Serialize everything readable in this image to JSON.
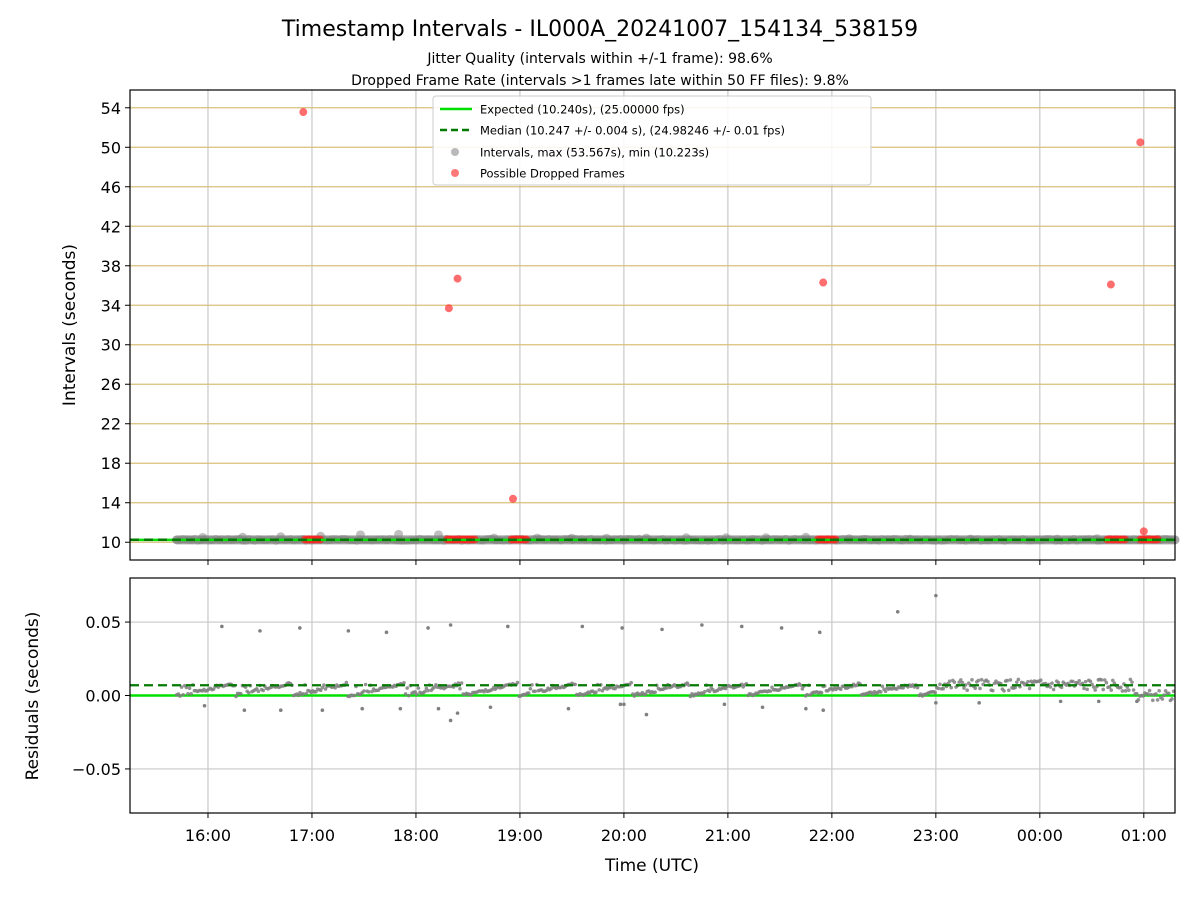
{
  "title": "Timestamp Intervals - IL000A_20241007_154134_538159",
  "subtitles": [
    "Jitter Quality (intervals within +/-1 frame): 98.6%",
    "Dropped Frame Rate (intervals >1 frames late within 50 FF files): 9.8%"
  ],
  "colors": {
    "expected": "#00e000",
    "median": "#007a00",
    "intervals": "#808080",
    "dropped": "#ff2020",
    "hgrid_top": "#d9bf7a",
    "grid": "#c8c8c8"
  },
  "chart_data": [
    {
      "type": "scatter",
      "panel": "intervals",
      "ylabel": "Intervals (seconds)",
      "xlabel": "",
      "xlim": [
        "15:15",
        "01:18"
      ],
      "ylim": [
        8.2,
        55.8
      ],
      "yticks": [
        "10",
        "14",
        "18",
        "22",
        "26",
        "30",
        "34",
        "38",
        "42",
        "46",
        "50",
        "54"
      ],
      "ytick_values": [
        10,
        14,
        18,
        22,
        26,
        30,
        34,
        38,
        42,
        46,
        50,
        54
      ],
      "grid": true,
      "legend_position": "upper-center",
      "legend": [
        {
          "label": "Expected (10.240s), (25.00000 fps)",
          "kind": "line-solid"
        },
        {
          "label": "Median (10.247 +/- 0.004 s), (24.98246 +/- 0.01 fps)",
          "kind": "line-dashed"
        },
        {
          "label": "Intervals, max (53.567s), min (10.223s)",
          "kind": "dot-gray"
        },
        {
          "label": "Possible Dropped Frames",
          "kind": "dot-red"
        }
      ],
      "expected": 10.24,
      "median": 10.247,
      "interval_range": {
        "start": "15:42",
        "end": "01:18",
        "baseline": 10.24
      },
      "interval_bumps": [
        {
          "x": "15:57",
          "y": 10.48
        },
        {
          "x": "16:20",
          "y": 10.5
        },
        {
          "x": "16:42",
          "y": 10.55
        },
        {
          "x": "17:05",
          "y": 10.6
        },
        {
          "x": "17:28",
          "y": 10.75
        },
        {
          "x": "17:50",
          "y": 10.8
        },
        {
          "x": "18:13",
          "y": 10.75
        },
        {
          "x": "18:45",
          "y": 10.42
        },
        {
          "x": "19:10",
          "y": 10.42
        },
        {
          "x": "19:30",
          "y": 10.4
        },
        {
          "x": "19:50",
          "y": 10.4
        },
        {
          "x": "20:13",
          "y": 10.42
        },
        {
          "x": "20:36",
          "y": 10.45
        },
        {
          "x": "20:59",
          "y": 10.45
        },
        {
          "x": "21:22",
          "y": 10.45
        },
        {
          "x": "21:45",
          "y": 10.5
        },
        {
          "x": "22:10",
          "y": 10.35
        },
        {
          "x": "22:45",
          "y": 10.32
        },
        {
          "x": "23:20",
          "y": 10.32
        },
        {
          "x": "00:10",
          "y": 10.32
        },
        {
          "x": "00:33",
          "y": 10.35
        }
      ],
      "dropped_outliers": [
        {
          "x": "16:55",
          "y": 53.57
        },
        {
          "x": "18:19",
          "y": 33.7
        },
        {
          "x": "18:24",
          "y": 36.7
        },
        {
          "x": "18:56",
          "y": 14.4
        },
        {
          "x": "21:55",
          "y": 36.3
        },
        {
          "x": "00:41",
          "y": 36.1
        },
        {
          "x": "00:58",
          "y": 50.5
        },
        {
          "x": "01:00",
          "y": 11.1
        }
      ],
      "dropped_clusters": [
        {
          "start": "16:56",
          "end": "17:06",
          "y": 10.28
        },
        {
          "start": "18:18",
          "end": "18:35",
          "y": 10.28
        },
        {
          "start": "18:55",
          "end": "19:05",
          "y": 10.28
        },
        {
          "start": "21:52",
          "end": "22:03",
          "y": 10.28
        },
        {
          "start": "00:39",
          "end": "00:50",
          "y": 10.28
        },
        {
          "start": "00:58",
          "end": "01:09",
          "y": 10.28
        }
      ]
    },
    {
      "type": "scatter",
      "panel": "residuals",
      "ylabel": "Residuals (seconds)",
      "xlabel": "Time (UTC)",
      "xlim": [
        "15:15",
        "01:18"
      ],
      "ylim": [
        -0.08,
        0.08
      ],
      "yticks": [
        "−0.05",
        "0.00",
        "0.05"
      ],
      "ytick_values": [
        -0.05,
        0,
        0.05
      ],
      "xticks": [
        "16:00",
        "17:00",
        "18:00",
        "19:00",
        "20:00",
        "21:00",
        "22:00",
        "23:00",
        "00:00",
        "01:00"
      ],
      "grid": true,
      "expected_residual": 0.0,
      "median_residual": 0.007,
      "high_outliers": [
        {
          "x": "16:08",
          "y": 0.047
        },
        {
          "x": "16:30",
          "y": 0.044
        },
        {
          "x": "16:53",
          "y": 0.046
        },
        {
          "x": "17:21",
          "y": 0.044
        },
        {
          "x": "17:43",
          "y": 0.043
        },
        {
          "x": "18:07",
          "y": 0.046
        },
        {
          "x": "18:20",
          "y": 0.048
        },
        {
          "x": "18:53",
          "y": 0.047
        },
        {
          "x": "19:36",
          "y": 0.047
        },
        {
          "x": "19:59",
          "y": 0.046
        },
        {
          "x": "20:22",
          "y": 0.045
        },
        {
          "x": "20:45",
          "y": 0.048
        },
        {
          "x": "21:08",
          "y": 0.047
        },
        {
          "x": "21:31",
          "y": 0.046
        },
        {
          "x": "21:53",
          "y": 0.043
        },
        {
          "x": "22:38",
          "y": 0.057
        },
        {
          "x": "23:00",
          "y": 0.068
        }
      ],
      "low_outliers": [
        {
          "x": "15:58",
          "y": -0.007
        },
        {
          "x": "16:21",
          "y": -0.01
        },
        {
          "x": "16:42",
          "y": -0.01
        },
        {
          "x": "17:06",
          "y": -0.01
        },
        {
          "x": "17:29",
          "y": -0.009
        },
        {
          "x": "17:51",
          "y": -0.009
        },
        {
          "x": "18:13",
          "y": -0.009
        },
        {
          "x": "18:20",
          "y": -0.017
        },
        {
          "x": "18:24",
          "y": -0.012
        },
        {
          "x": "18:43",
          "y": -0.008
        },
        {
          "x": "19:28",
          "y": -0.009
        },
        {
          "x": "19:58",
          "y": -0.006
        },
        {
          "x": "20:00",
          "y": -0.006
        },
        {
          "x": "20:13",
          "y": -0.013
        },
        {
          "x": "20:58",
          "y": -0.006
        },
        {
          "x": "21:20",
          "y": -0.008
        },
        {
          "x": "21:45",
          "y": -0.009
        },
        {
          "x": "21:55",
          "y": -0.01
        },
        {
          "x": "23:00",
          "y": -0.005
        },
        {
          "x": "23:25",
          "y": -0.005
        },
        {
          "x": "00:12",
          "y": -0.004
        },
        {
          "x": "00:34",
          "y": -0.004
        },
        {
          "x": "00:56",
          "y": -0.004
        }
      ]
    }
  ]
}
